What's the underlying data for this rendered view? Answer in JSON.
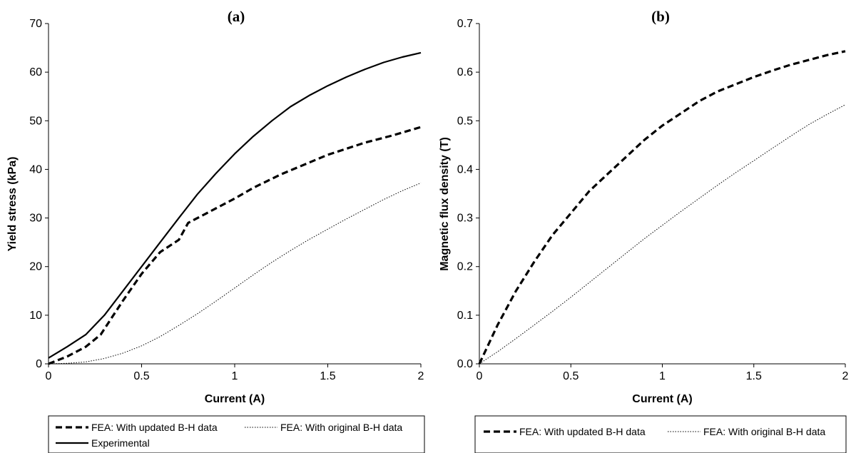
{
  "chart_data": [
    {
      "type": "line",
      "panel_label": "(a)",
      "xlabel": "Current (A)",
      "ylabel": "Yield stress (kPa)",
      "xlim": [
        0,
        2
      ],
      "ylim": [
        0,
        70
      ],
      "xticks": [
        "0",
        "0.5",
        "1",
        "1.5",
        "2"
      ],
      "yticks": [
        "0",
        "10",
        "20",
        "30",
        "40",
        "50",
        "60",
        "70"
      ],
      "grid": false,
      "legend_position": "bottom",
      "series": [
        {
          "name": "FEA: With updated B-H data",
          "style": "dashed-bold",
          "x": [
            0,
            0.1,
            0.2,
            0.28,
            0.4,
            0.5,
            0.6,
            0.7,
            0.75,
            0.85,
            1.0,
            1.1,
            1.25,
            1.5,
            1.7,
            1.85,
            2.0
          ],
          "y": [
            0,
            1.5,
            3.5,
            6,
            13,
            18.5,
            23,
            25.5,
            29,
            31,
            34,
            36.2,
            39,
            43,
            45.5,
            47,
            48.7
          ]
        },
        {
          "name": "FEA: With original B-H data",
          "style": "dotted-thin",
          "x": [
            0,
            0.1,
            0.2,
            0.3,
            0.4,
            0.5,
            0.6,
            0.7,
            0.8,
            0.9,
            1.0,
            1.1,
            1.2,
            1.3,
            1.4,
            1.5,
            1.6,
            1.7,
            1.8,
            1.9,
            2.0
          ],
          "y": [
            0,
            0.1,
            0.4,
            1.1,
            2.2,
            3.7,
            5.6,
            7.9,
            10.3,
            12.9,
            15.6,
            18.3,
            20.9,
            23.3,
            25.6,
            27.7,
            29.8,
            31.8,
            33.8,
            35.6,
            37.2
          ]
        },
        {
          "name": "Experimental",
          "style": "solid",
          "x": [
            0,
            0.1,
            0.2,
            0.3,
            0.4,
            0.5,
            0.6,
            0.7,
            0.8,
            0.9,
            1.0,
            1.1,
            1.2,
            1.3,
            1.4,
            1.5,
            1.6,
            1.7,
            1.8,
            1.9,
            2.0
          ],
          "y": [
            1.2,
            3.5,
            6,
            10,
            15,
            20,
            25,
            30,
            34.9,
            39.2,
            43.2,
            46.8,
            50,
            52.9,
            55.2,
            57.2,
            59,
            60.6,
            62,
            63.1,
            64
          ]
        }
      ]
    },
    {
      "type": "line",
      "panel_label": "(b)",
      "xlabel": "Current (A)",
      "ylabel": "Magnetic flux density (T)",
      "xlim": [
        0,
        2
      ],
      "ylim": [
        0,
        0.7
      ],
      "xticks": [
        "0",
        "0.5",
        "1",
        "1.5",
        "2"
      ],
      "yticks": [
        "0.0",
        "0.1",
        "0.2",
        "0.3",
        "0.4",
        "0.5",
        "0.6",
        "0.7"
      ],
      "grid": false,
      "legend_position": "bottom",
      "series": [
        {
          "name": "FEA: With updated B-H data",
          "style": "dashed-bold",
          "x": [
            0,
            0.05,
            0.1,
            0.2,
            0.3,
            0.4,
            0.5,
            0.6,
            0.7,
            0.8,
            0.9,
            1.0,
            1.1,
            1.2,
            1.3,
            1.4,
            1.5,
            1.6,
            1.7,
            1.8,
            1.9,
            2.0
          ],
          "y": [
            0.0,
            0.04,
            0.08,
            0.15,
            0.21,
            0.265,
            0.31,
            0.355,
            0.39,
            0.425,
            0.46,
            0.49,
            0.515,
            0.54,
            0.56,
            0.575,
            0.59,
            0.603,
            0.615,
            0.625,
            0.635,
            0.643
          ]
        },
        {
          "name": "FEA: With original B-H data",
          "style": "dotted-thin",
          "x": [
            0,
            0.1,
            0.2,
            0.3,
            0.4,
            0.5,
            0.6,
            0.7,
            0.8,
            0.9,
            1.0,
            1.1,
            1.2,
            1.3,
            1.4,
            1.5,
            1.6,
            1.7,
            1.8,
            1.9,
            2.0
          ],
          "y": [
            0.0,
            0.025,
            0.052,
            0.08,
            0.108,
            0.137,
            0.167,
            0.197,
            0.227,
            0.257,
            0.285,
            0.313,
            0.34,
            0.367,
            0.393,
            0.418,
            0.443,
            0.468,
            0.492,
            0.513,
            0.533
          ]
        }
      ]
    }
  ]
}
